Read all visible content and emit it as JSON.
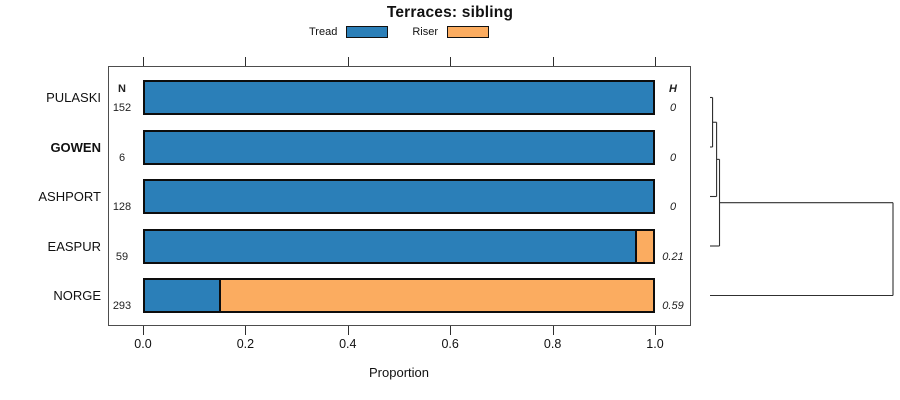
{
  "title": "Terraces: sibling",
  "legend": {
    "items": [
      {
        "label": "Tread",
        "color": "#2b7fb8"
      },
      {
        "label": "Riser",
        "color": "#fbac60"
      }
    ]
  },
  "columns": {
    "n_header": "N",
    "h_header": "H"
  },
  "axis": {
    "label": "Proportion",
    "ticks": [
      "0.0",
      "0.2",
      "0.4",
      "0.6",
      "0.8",
      "1.0"
    ]
  },
  "chart_data": {
    "type": "bar",
    "orientation": "horizontal",
    "stacked": true,
    "title": "Terraces: sibling",
    "xlabel": "Proportion",
    "xlim": [
      0,
      1
    ],
    "grid": false,
    "legend_position": "top",
    "categories": [
      "PULASKI",
      "GOWEN",
      "ASHPORT",
      "EASPUR",
      "NORGE"
    ],
    "emphasized_category": "GOWEN",
    "n_values": [
      152,
      6,
      128,
      59,
      293
    ],
    "h_values": [
      "0",
      "0",
      "0",
      "0.21",
      "0.59"
    ],
    "series": [
      {
        "name": "Tread",
        "color": "#2b7fb8",
        "values": [
          1.0,
          1.0,
          1.0,
          0.965,
          0.145
        ]
      },
      {
        "name": "Riser",
        "color": "#fbac60",
        "values": [
          0.0,
          0.0,
          0.0,
          0.035,
          0.855
        ]
      }
    ],
    "dendrogram": {
      "leaves": [
        "PULASKI",
        "GOWEN",
        "ASHPORT",
        "EASPUR",
        "NORGE"
      ],
      "merges": [
        {
          "children": [
            0,
            1
          ],
          "height": 0.014
        },
        {
          "children": [
            5,
            2
          ],
          "height": 0.036
        },
        {
          "children": [
            6,
            3
          ],
          "height": 0.052
        },
        {
          "children": [
            7,
            4
          ],
          "height": 1.0
        }
      ]
    }
  }
}
